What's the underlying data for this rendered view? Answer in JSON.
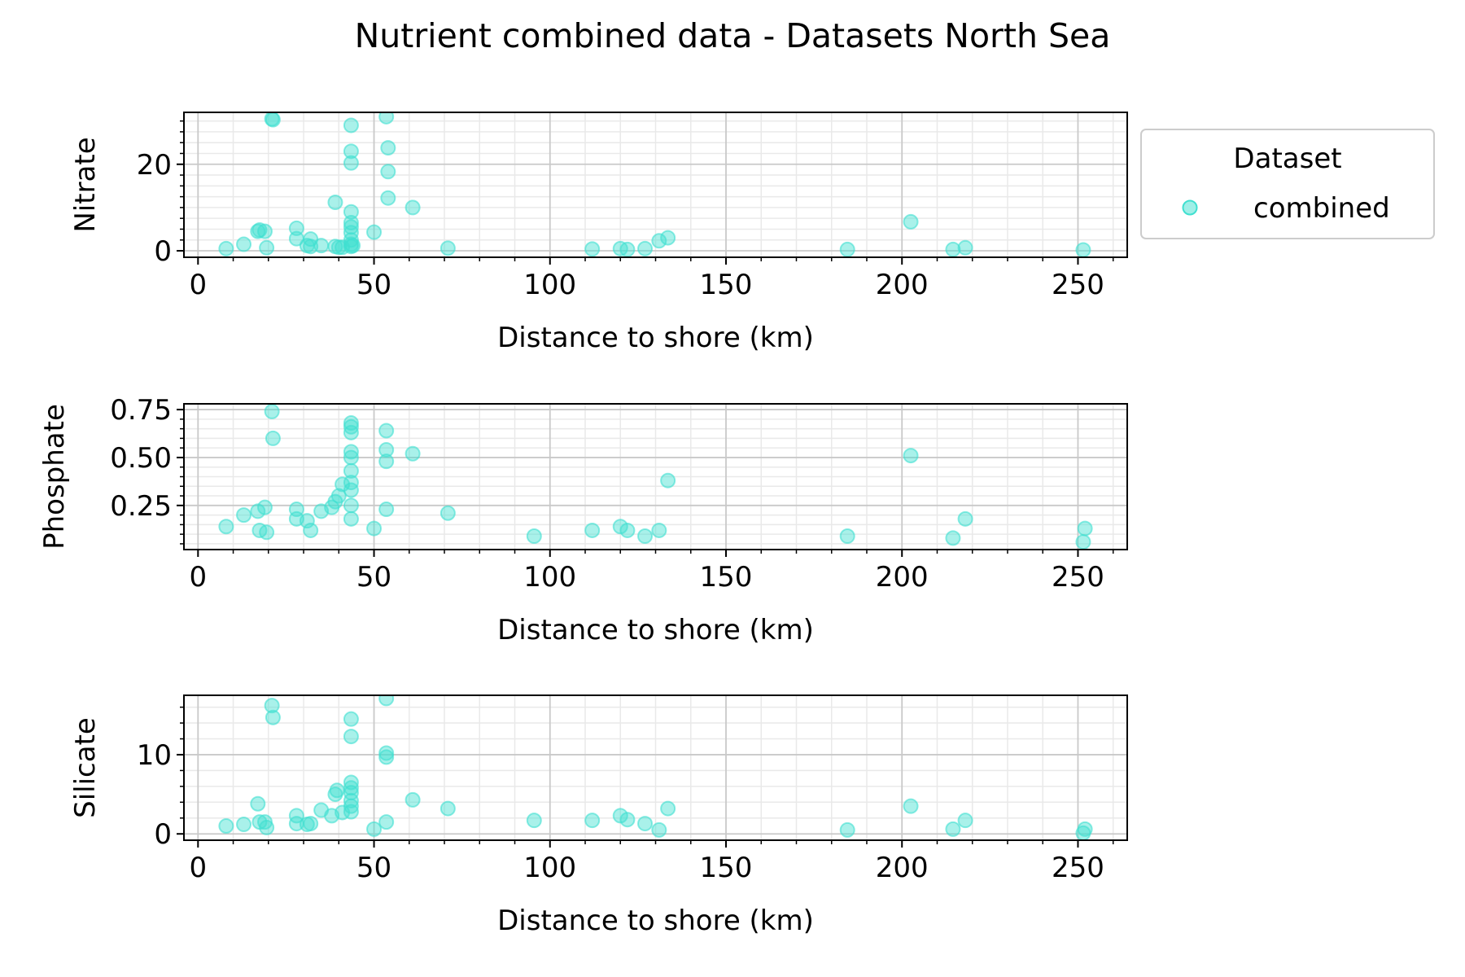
{
  "figure": {
    "title": "Nutrient combined data - Datasets North Sea",
    "legend": {
      "title": "Dataset",
      "entry": "combined",
      "placement": "outside upper right"
    },
    "marker_color": "#40e0d0"
  },
  "chart_data": [
    {
      "type": "scatter",
      "title": "",
      "xlabel": "Distance to shore (km)",
      "ylabel": "Nitrate",
      "xlim": [
        -4,
        264
      ],
      "ylim": [
        -1.5,
        32
      ],
      "xticks": [
        "0",
        "50",
        "100",
        "150",
        "200",
        "250"
      ],
      "yticks": [
        "0",
        "20"
      ],
      "grid": "major and minor",
      "series": [
        {
          "name": "combined",
          "x": [
            8,
            13,
            17,
            17.5,
            19,
            19.5,
            21,
            21.3,
            28,
            28,
            31,
            32,
            32,
            35,
            39,
            39,
            40,
            41,
            43.5,
            43.5,
            43.5,
            43.5,
            43.5,
            43.5,
            43.5,
            43.5,
            43.5,
            43.5,
            44,
            50,
            53.5,
            54,
            54,
            54,
            61,
            71,
            112,
            120,
            122,
            127,
            131,
            133.5,
            184.5,
            202.5,
            214.5,
            218,
            251.5
          ],
          "y": [
            0.5,
            1.5,
            4.5,
            4.8,
            4.5,
            0.7,
            30.5,
            30.3,
            5.2,
            2.8,
            1.2,
            2.7,
            1,
            1.2,
            11.2,
            1,
            0.8,
            0.8,
            29,
            23,
            20.3,
            9,
            6.5,
            5.5,
            4.2,
            2.5,
            1.5,
            1,
            1.2,
            4.3,
            31,
            23.8,
            18.3,
            12.2,
            10,
            0.6,
            0.4,
            0.5,
            0.3,
            0.5,
            2.3,
            3,
            0.3,
            6.7,
            0.3,
            0.7,
            0.2
          ]
        }
      ]
    },
    {
      "type": "scatter",
      "title": "",
      "xlabel": "Distance to shore (km)",
      "ylabel": "Phosphate",
      "xlim": [
        -4,
        264
      ],
      "ylim": [
        0.02,
        0.78
      ],
      "xticks": [
        "0",
        "50",
        "100",
        "150",
        "200",
        "250"
      ],
      "yticks": [
        "0.25",
        "0.50",
        "0.75"
      ],
      "grid": "major and minor",
      "series": [
        {
          "name": "combined",
          "x": [
            8,
            13,
            17,
            17.5,
            19,
            19.5,
            21,
            21.3,
            28,
            28,
            31,
            32,
            35,
            38,
            39,
            40,
            41,
            43.5,
            43.5,
            43.5,
            43.5,
            43.5,
            43.5,
            43.5,
            43.5,
            43.5,
            43.5,
            50,
            53.5,
            53.5,
            53.5,
            53.5,
            61,
            71,
            95.5,
            112,
            120,
            122,
            127,
            131,
            133.5,
            184.5,
            202.5,
            214.5,
            218,
            251.5,
            252
          ],
          "y": [
            0.14,
            0.2,
            0.22,
            0.12,
            0.24,
            0.11,
            0.74,
            0.6,
            0.23,
            0.18,
            0.17,
            0.12,
            0.22,
            0.24,
            0.27,
            0.3,
            0.36,
            0.68,
            0.66,
            0.63,
            0.53,
            0.5,
            0.43,
            0.37,
            0.33,
            0.25,
            0.18,
            0.13,
            0.64,
            0.54,
            0.48,
            0.23,
            0.52,
            0.21,
            0.09,
            0.12,
            0.14,
            0.12,
            0.09,
            0.12,
            0.38,
            0.09,
            0.51,
            0.08,
            0.18,
            0.06,
            0.13
          ]
        }
      ]
    },
    {
      "type": "scatter",
      "title": "",
      "xlabel": "Distance to shore (km)",
      "ylabel": "Silicate",
      "xlim": [
        -4,
        264
      ],
      "ylim": [
        -0.8,
        17.5
      ],
      "xticks": [
        "0",
        "50",
        "100",
        "150",
        "200",
        "250"
      ],
      "yticks": [
        "0",
        "10"
      ],
      "grid": "major and minor",
      "series": [
        {
          "name": "combined",
          "x": [
            8,
            13,
            17,
            17.5,
            19,
            19.5,
            21,
            21.3,
            28,
            28,
            31,
            32,
            35,
            38,
            39,
            39.5,
            41,
            43.5,
            43.5,
            43.5,
            43.5,
            43.5,
            43.5,
            43.5,
            43.5,
            50,
            53.5,
            53.5,
            53.5,
            53.5,
            61,
            71,
            95.5,
            112,
            120,
            122,
            127,
            131,
            133.5,
            184.5,
            202.5,
            214.5,
            218,
            251.5,
            252
          ],
          "y": [
            1,
            1.2,
            3.8,
            1.5,
            1.5,
            0.8,
            16.2,
            14.7,
            2.3,
            1.3,
            1.2,
            1.3,
            3,
            2.3,
            5,
            5.5,
            2.7,
            14.5,
            12.3,
            6.5,
            5.8,
            5.2,
            4.2,
            3.5,
            2.8,
            0.6,
            17.1,
            10.2,
            9.7,
            1.5,
            4.3,
            3.2,
            1.7,
            1.7,
            2.3,
            1.8,
            1.3,
            0.5,
            3.2,
            0.5,
            3.5,
            0.6,
            1.7,
            0.1,
            0.6
          ]
        }
      ]
    }
  ]
}
